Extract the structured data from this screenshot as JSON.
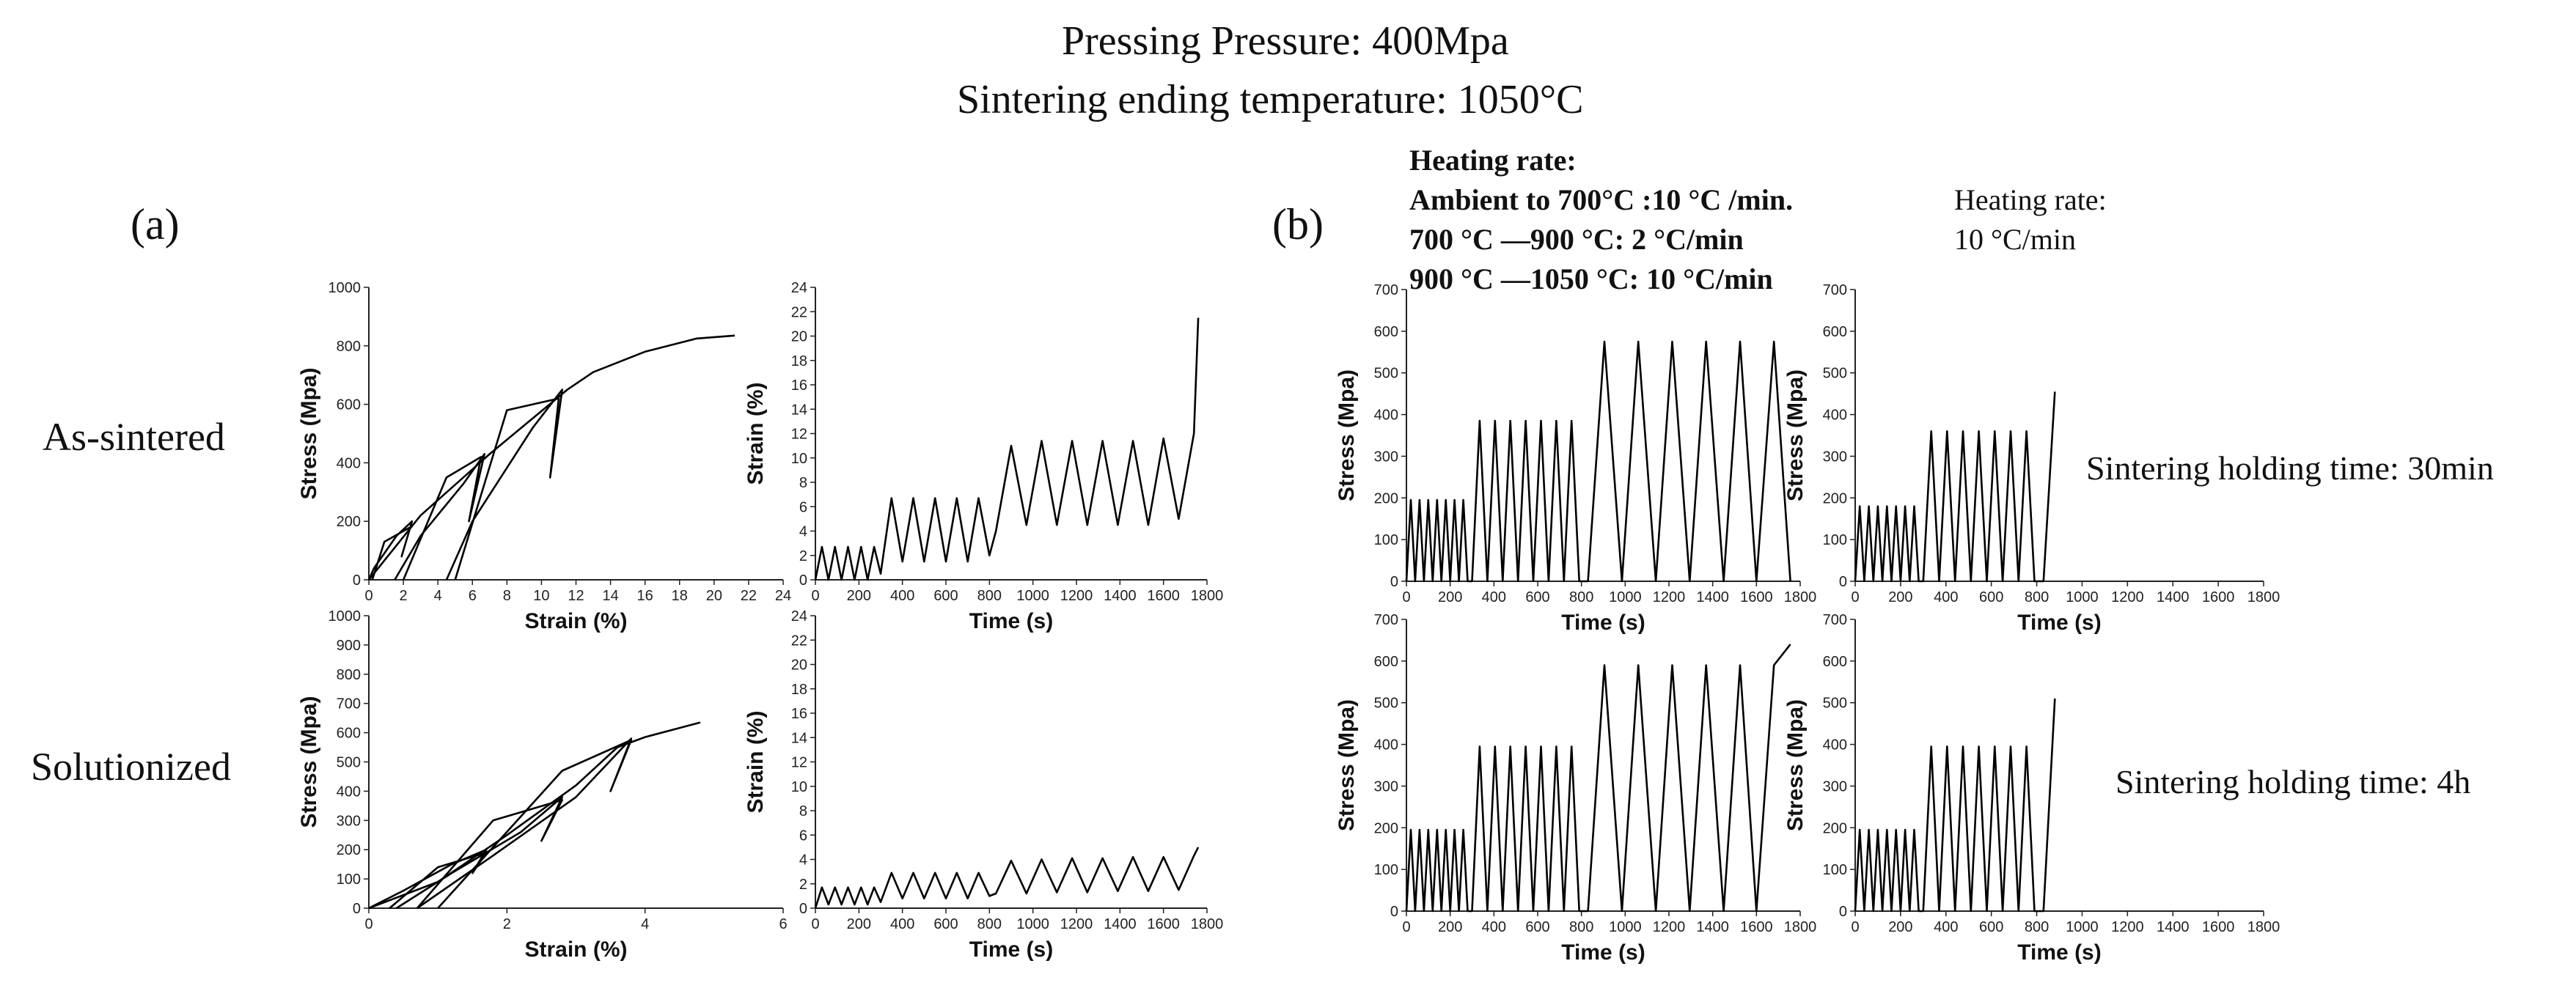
{
  "header": {
    "title_line1": "Pressing Pressure: 400Mpa",
    "title_line2": "Sintering ending temperature: 1050°C"
  },
  "panel_a": {
    "label": "(a)",
    "row1": "As-sintered",
    "row2": "Solutionized"
  },
  "panel_b": {
    "label": "(b)",
    "heating_left": [
      "Heating rate:",
      "Ambient to 700°C :10 °C /min.",
      "700 °C —900 °C: 2 °C/min",
      "900 °C —1050 °C: 10 °C/min"
    ],
    "heating_right": [
      "Heating rate:",
      "10 °C/min"
    ],
    "note1": "Sintering holding time: 30min",
    "note2": "Sintering holding time: 4h"
  },
  "chart_data": [
    {
      "id": "a1",
      "type": "line",
      "xlabel": "Strain (%)",
      "ylabel": "Stress (Mpa)",
      "xlim": [
        0,
        24
      ],
      "ylim": [
        0,
        1000
      ],
      "xticks": [
        0,
        2,
        4,
        6,
        8,
        10,
        12,
        14,
        16,
        18,
        20,
        22,
        24
      ],
      "yticks": [
        0,
        200,
        400,
        600,
        800,
        1000
      ],
      "series": [
        {
          "name": "loop-1",
          "x": [
            0,
            0.3,
            1.6,
            2.5,
            1.9,
            2.4,
            0.9,
            0.2
          ],
          "y": [
            0,
            40,
            150,
            200,
            80,
            180,
            130,
            0
          ]
        },
        {
          "name": "loop-2",
          "x": [
            1.5,
            3,
            5.5,
            6.7,
            5.8,
            6.5,
            4.5,
            2
          ],
          "y": [
            0,
            150,
            330,
            430,
            200,
            420,
            350,
            0
          ]
        },
        {
          "name": "loop-3",
          "x": [
            4.5,
            6,
            9.5,
            11.2,
            10.5,
            11,
            8,
            5
          ],
          "y": [
            0,
            200,
            520,
            650,
            350,
            620,
            580,
            0
          ]
        },
        {
          "name": "envelope",
          "x": [
            0,
            3,
            7,
            11.5,
            13,
            16,
            19,
            21.2
          ],
          "y": [
            0,
            220,
            430,
            650,
            710,
            780,
            825,
            835
          ]
        }
      ]
    },
    {
      "id": "a2",
      "type": "line",
      "xlabel": "Time (s)",
      "ylabel": "Strain (%)",
      "xlim": [
        0,
        1800
      ],
      "ylim": [
        0,
        24
      ],
      "xticks": [
        0,
        200,
        400,
        600,
        800,
        1000,
        1200,
        1400,
        1600,
        1800
      ],
      "yticks": [
        0,
        2,
        4,
        6,
        8,
        10,
        12,
        14,
        16,
        18,
        20,
        22,
        24
      ],
      "series": [
        {
          "name": "strain",
          "x": [
            0,
            30,
            60,
            90,
            120,
            150,
            180,
            210,
            240,
            270,
            300,
            350,
            400,
            450,
            500,
            550,
            600,
            650,
            700,
            750,
            800,
            830,
            900,
            970,
            1040,
            1110,
            1180,
            1250,
            1320,
            1390,
            1460,
            1530,
            1600,
            1670,
            1740,
            1760
          ],
          "y": [
            0,
            2.7,
            0,
            2.7,
            0,
            2.7,
            0,
            2.7,
            0,
            2.7,
            0.5,
            6.7,
            1.5,
            6.7,
            1.5,
            6.7,
            1.5,
            6.7,
            1.5,
            6.7,
            2,
            4,
            11,
            4.5,
            11.4,
            4.5,
            11.4,
            4.5,
            11.4,
            4.5,
            11.4,
            4.5,
            11.6,
            5,
            12,
            21.5
          ]
        }
      ]
    },
    {
      "id": "a3",
      "type": "line",
      "xlabel": "Strain (%)",
      "ylabel": "Stress (Mpa)",
      "xlim": [
        0,
        6
      ],
      "ylim": [
        0,
        1000
      ],
      "xticks": [
        0,
        2,
        4,
        6
      ],
      "yticks": [
        0,
        100,
        200,
        300,
        400,
        500,
        600,
        700,
        800,
        900,
        1000
      ],
      "series": [
        {
          "name": "loop-1",
          "x": [
            0,
            0.5,
            1.2,
            1.7,
            1.5,
            1.7,
            1,
            0.3
          ],
          "y": [
            0,
            60,
            150,
            200,
            120,
            190,
            140,
            0
          ]
        },
        {
          "name": "loop-2",
          "x": [
            0.4,
            1.2,
            2.2,
            2.8,
            2.5,
            2.8,
            1.8,
            0.7
          ],
          "y": [
            0,
            120,
            260,
            380,
            230,
            370,
            300,
            0
          ]
        },
        {
          "name": "loop-3",
          "x": [
            0.7,
            1.8,
            3,
            3.8,
            3.5,
            3.8,
            2.8,
            1
          ],
          "y": [
            0,
            180,
            380,
            580,
            400,
            575,
            470,
            0
          ]
        },
        {
          "name": "envelope",
          "x": [
            0,
            1,
            2,
            3,
            3.6,
            4,
            4.4,
            4.8
          ],
          "y": [
            0,
            90,
            250,
            420,
            550,
            585,
            610,
            635
          ]
        }
      ]
    },
    {
      "id": "a4",
      "type": "line",
      "xlabel": "Time (s)",
      "ylabel": "Strain (%)",
      "xlim": [
        0,
        1800
      ],
      "ylim": [
        0,
        24
      ],
      "xticks": [
        0,
        200,
        400,
        600,
        800,
        1000,
        1200,
        1400,
        1600,
        1800
      ],
      "yticks": [
        0,
        2,
        4,
        6,
        8,
        10,
        12,
        14,
        16,
        18,
        20,
        22,
        24
      ],
      "series": [
        {
          "name": "strain",
          "x": [
            0,
            30,
            60,
            90,
            120,
            150,
            180,
            210,
            240,
            270,
            300,
            350,
            400,
            450,
            500,
            550,
            600,
            650,
            700,
            750,
            800,
            830,
            900,
            970,
            1040,
            1110,
            1180,
            1250,
            1320,
            1390,
            1460,
            1530,
            1600,
            1670,
            1740,
            1760
          ],
          "y": [
            0,
            1.7,
            0.3,
            1.7,
            0.3,
            1.7,
            0.3,
            1.7,
            0.3,
            1.7,
            0.5,
            2.9,
            0.8,
            2.9,
            0.8,
            2.9,
            0.8,
            2.9,
            0.8,
            2.9,
            1,
            1.2,
            3.9,
            1.2,
            4,
            1.3,
            4.1,
            1.3,
            4.1,
            1.4,
            4.2,
            1.4,
            4.2,
            1.5,
            4.3,
            5
          ]
        }
      ]
    },
    {
      "id": "b1",
      "type": "line",
      "xlabel": "Time (s)",
      "ylabel": "Stress (Mpa)",
      "xlim": [
        0,
        1800
      ],
      "ylim": [
        0,
        700
      ],
      "xticks": [
        0,
        200,
        400,
        600,
        800,
        1000,
        1200,
        1400,
        1600,
        1800
      ],
      "yticks": [
        0,
        100,
        200,
        300,
        400,
        500,
        600,
        700
      ],
      "series": [
        {
          "name": "stress",
          "x": [
            0,
            20,
            40,
            60,
            80,
            100,
            120,
            140,
            160,
            180,
            200,
            220,
            240,
            260,
            280,
            300,
            335,
            370,
            405,
            440,
            475,
            510,
            545,
            580,
            615,
            650,
            685,
            720,
            755,
            790,
            830,
            905,
            985,
            1060,
            1140,
            1215,
            1295,
            1370,
            1450,
            1525,
            1600,
            1680,
            1755
          ],
          "y": [
            0,
            195,
            0,
            195,
            0,
            195,
            0,
            195,
            0,
            195,
            0,
            195,
            0,
            195,
            0,
            0,
            385,
            0,
            385,
            0,
            385,
            0,
            385,
            0,
            385,
            0,
            385,
            0,
            385,
            0,
            0,
            575,
            0,
            575,
            0,
            575,
            0,
            575,
            0,
            575,
            0,
            575,
            0
          ]
        }
      ]
    },
    {
      "id": "b2",
      "type": "line",
      "xlabel": "Time (s)",
      "ylabel": "Stress (Mpa)",
      "xlim": [
        0,
        1800
      ],
      "ylim": [
        0,
        700
      ],
      "xticks": [
        0,
        200,
        400,
        600,
        800,
        1000,
        1200,
        1400,
        1600,
        1800
      ],
      "yticks": [
        0,
        100,
        200,
        300,
        400,
        500,
        600,
        700
      ],
      "series": [
        {
          "name": "stress",
          "x": [
            0,
            20,
            40,
            60,
            80,
            100,
            120,
            140,
            160,
            180,
            200,
            220,
            240,
            260,
            280,
            300,
            335,
            370,
            405,
            440,
            475,
            510,
            545,
            580,
            615,
            650,
            685,
            720,
            755,
            790,
            830,
            880
          ],
          "y": [
            0,
            180,
            0,
            180,
            0,
            180,
            0,
            180,
            0,
            180,
            0,
            180,
            0,
            180,
            0,
            0,
            360,
            0,
            360,
            0,
            360,
            0,
            360,
            0,
            360,
            0,
            360,
            0,
            360,
            0,
            0,
            455
          ]
        }
      ]
    },
    {
      "id": "b3",
      "type": "line",
      "xlabel": "Time (s)",
      "ylabel": "Stress (Mpa)",
      "xlim": [
        0,
        1800
      ],
      "ylim": [
        0,
        700
      ],
      "xticks": [
        0,
        200,
        400,
        600,
        800,
        1000,
        1200,
        1400,
        1600,
        1800
      ],
      "yticks": [
        0,
        100,
        200,
        300,
        400,
        500,
        600,
        700
      ],
      "series": [
        {
          "name": "stress",
          "x": [
            0,
            20,
            40,
            60,
            80,
            100,
            120,
            140,
            160,
            180,
            200,
            220,
            240,
            260,
            280,
            300,
            335,
            370,
            405,
            440,
            475,
            510,
            545,
            580,
            615,
            650,
            685,
            720,
            755,
            790,
            830,
            905,
            985,
            1060,
            1140,
            1215,
            1295,
            1370,
            1450,
            1525,
            1600,
            1680,
            1755
          ],
          "y": [
            0,
            195,
            0,
            195,
            0,
            195,
            0,
            195,
            0,
            195,
            0,
            195,
            0,
            195,
            0,
            0,
            395,
            0,
            395,
            0,
            395,
            0,
            395,
            0,
            395,
            0,
            395,
            0,
            395,
            0,
            0,
            590,
            0,
            590,
            0,
            590,
            0,
            590,
            0,
            590,
            0,
            590,
            640
          ]
        }
      ]
    },
    {
      "id": "b4",
      "type": "line",
      "xlabel": "Time (s)",
      "ylabel": "Stress (Mpa)",
      "xlim": [
        0,
        1800
      ],
      "ylim": [
        0,
        700
      ],
      "xticks": [
        0,
        200,
        400,
        600,
        800,
        1000,
        1200,
        1400,
        1600,
        1800
      ],
      "yticks": [
        0,
        100,
        200,
        300,
        400,
        500,
        600,
        700
      ],
      "series": [
        {
          "name": "stress",
          "x": [
            0,
            20,
            40,
            60,
            80,
            100,
            120,
            140,
            160,
            180,
            200,
            220,
            240,
            260,
            280,
            300,
            335,
            370,
            405,
            440,
            475,
            510,
            545,
            580,
            615,
            650,
            685,
            720,
            755,
            790,
            830,
            880
          ],
          "y": [
            0,
            195,
            0,
            195,
            0,
            195,
            0,
            195,
            0,
            195,
            0,
            195,
            0,
            195,
            0,
            0,
            395,
            0,
            395,
            0,
            395,
            0,
            395,
            0,
            395,
            0,
            395,
            0,
            395,
            0,
            0,
            510
          ]
        }
      ]
    }
  ]
}
